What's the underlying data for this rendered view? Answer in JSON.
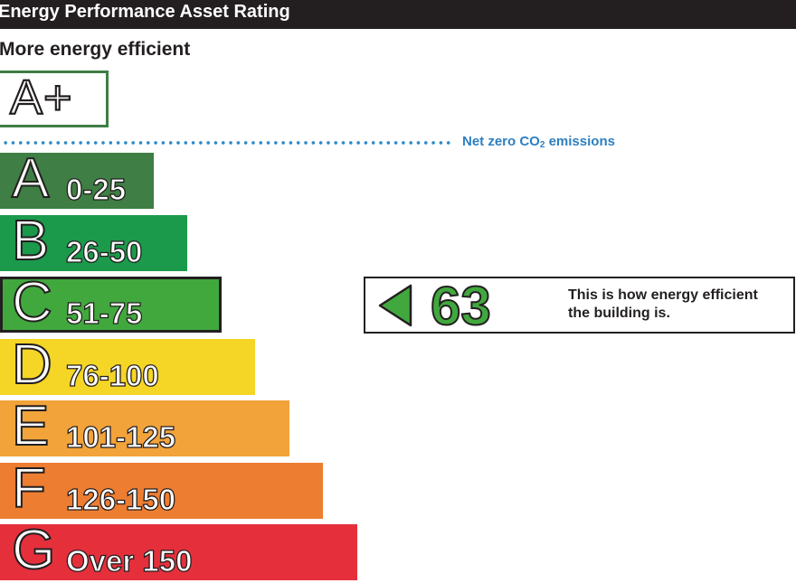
{
  "header": {
    "title": "Energy Performance Asset Rating"
  },
  "top_label": "More energy efficient",
  "top_band": {
    "letter": "A+"
  },
  "net_zero": {
    "text_main": "Net zero CO",
    "text_sub": "2",
    "text_after": " emissions",
    "color": "#2d7fc1"
  },
  "bands": [
    {
      "letter": "A",
      "range": "0-25",
      "color": "#3f7e44"
    },
    {
      "letter": "B",
      "range": "26-50",
      "color": "#1b9a4b"
    },
    {
      "letter": "C",
      "range": "51-75",
      "color": "#41a83e",
      "current": true
    },
    {
      "letter": "D",
      "range": "76-100",
      "color": "#f5d526"
    },
    {
      "letter": "E",
      "range": "101-125",
      "color": "#f2a33a"
    },
    {
      "letter": "F",
      "range": "126-150",
      "color": "#ed7d31"
    },
    {
      "letter": "G",
      "range": "Over 150",
      "color": "#e5303c"
    }
  ],
  "rating": {
    "value": "63",
    "color": "#41a83e",
    "caption_line1": "This is how energy efficient",
    "caption_line2": "the building is."
  }
}
